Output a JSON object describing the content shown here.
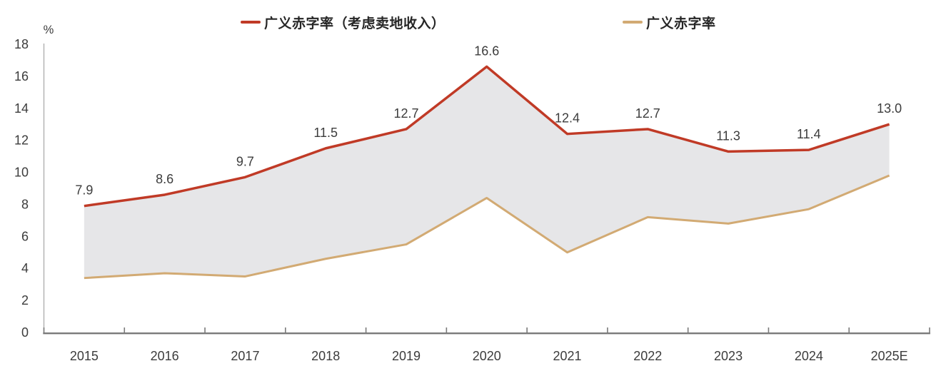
{
  "chart_data": {
    "type": "line",
    "title": "",
    "y_unit": "%",
    "categories": [
      "2015",
      "2016",
      "2017",
      "2018",
      "2019",
      "2020",
      "2021",
      "2022",
      "2023",
      "2024",
      "2025E"
    ],
    "series": [
      {
        "name": "广义赤字率（考虑卖地收入）",
        "color": "#c03a26",
        "values": [
          7.9,
          8.6,
          9.7,
          11.5,
          12.7,
          16.6,
          12.4,
          12.7,
          11.3,
          11.4,
          13.0
        ],
        "point_labels": [
          "7.9",
          "8.6",
          "9.7",
          "11.5",
          "12.7",
          "16.6",
          "12.4",
          "12.7",
          "11.3",
          "11.4",
          "13.0"
        ]
      },
      {
        "name": "广义赤字率",
        "color": "#d2aa73",
        "values": [
          3.4,
          3.7,
          3.5,
          4.6,
          5.5,
          8.4,
          5.0,
          7.2,
          6.8,
          7.7,
          9.8
        ]
      }
    ],
    "band_between_series": true,
    "band_fill": "#e6e6e8",
    "ylim": [
      0,
      18
    ],
    "ytick_step": 2,
    "grid": false,
    "legend_position": "top"
  },
  "colors": {
    "x_axis": "#7a7a7a",
    "y_axis": "#ababab",
    "tick": "#7a7a7a",
    "label_text": "#3c3c3c"
  }
}
